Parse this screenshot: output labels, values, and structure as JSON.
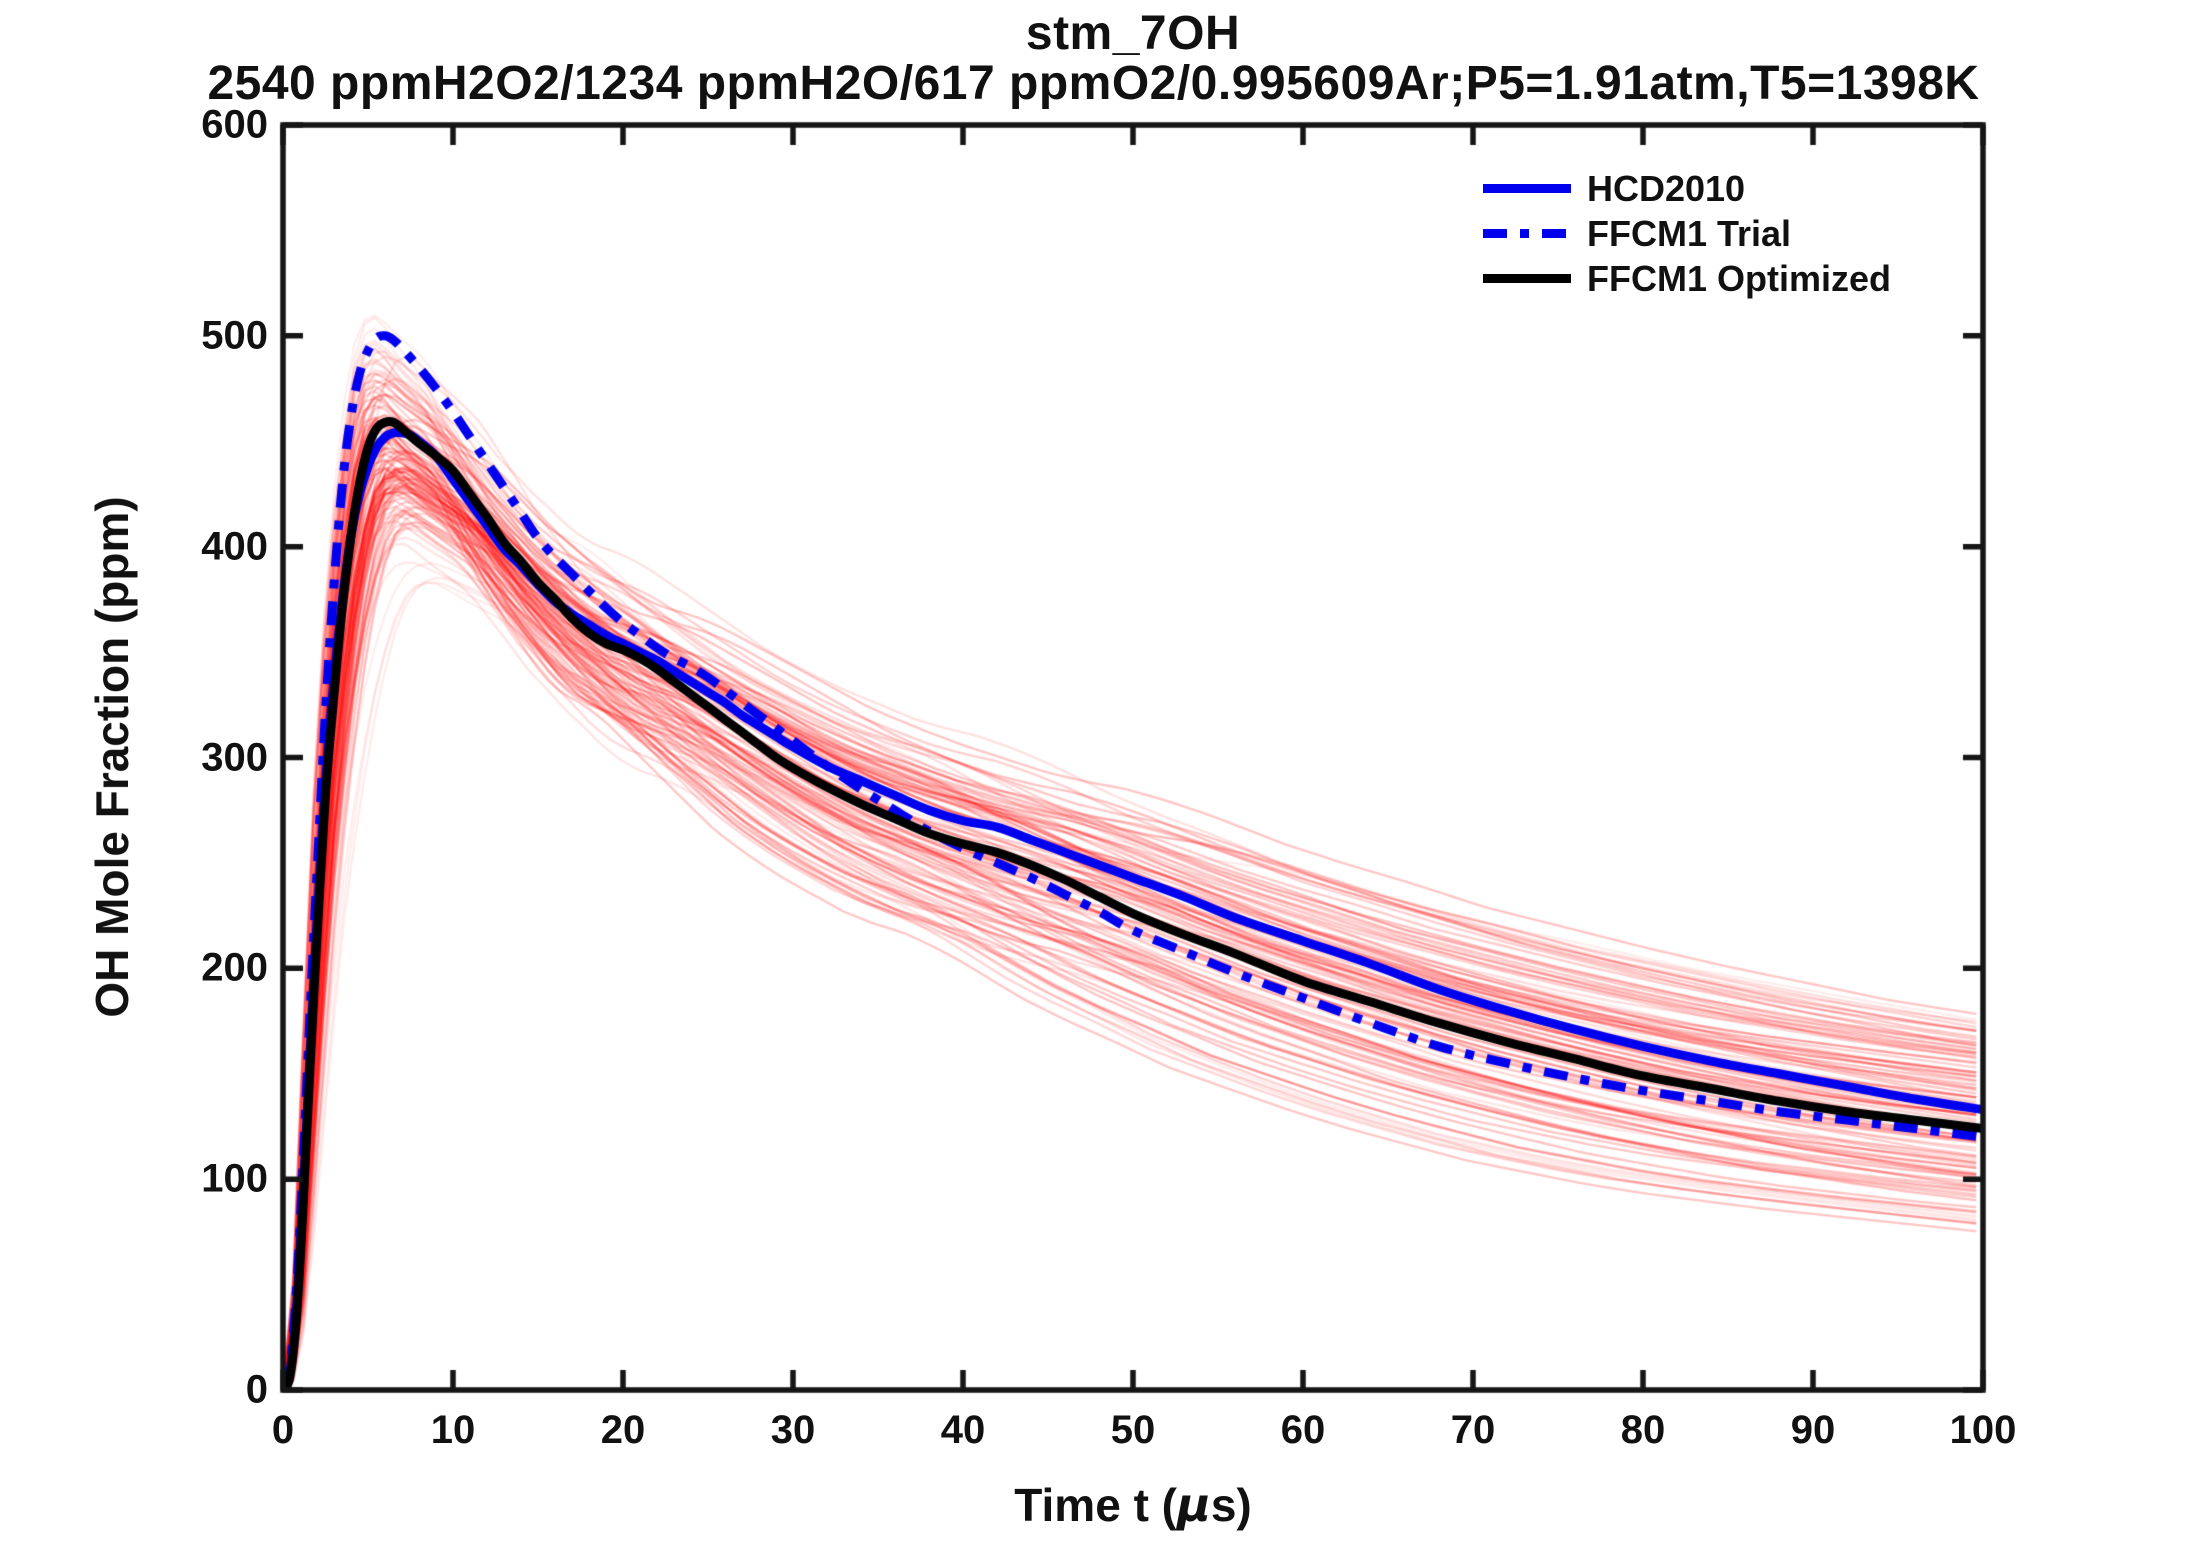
{
  "accent_colors": {
    "blue": "#0000EE",
    "black": "#000000",
    "ensemble_red": "#FF0000",
    "axis": "#151515"
  },
  "chart_data": {
    "type": "line",
    "title": "stm_7OH",
    "subtitle": "2540 ppmH2O2/1234 ppmH2O/617 ppmO2/0.995609Ar;P5=1.91atm,T5=1398K",
    "ylabel": "OH Mole Fraction (ppm)",
    "xlabel_parts": [
      "Time t (",
      "μ",
      "s)"
    ],
    "xlim": [
      0,
      100
    ],
    "ylim": [
      0,
      600
    ],
    "x_ticks": [
      "0",
      "10",
      "20",
      "30",
      "40",
      "50",
      "60",
      "70",
      "80",
      "90",
      "100"
    ],
    "x_tick_values": [
      0,
      10,
      20,
      30,
      40,
      50,
      60,
      70,
      80,
      90,
      100
    ],
    "y_ticks": [
      "0",
      "100",
      "200",
      "300",
      "400",
      "500",
      "600"
    ],
    "y_tick_values": [
      0,
      100,
      200,
      300,
      400,
      500,
      600
    ],
    "grid": false,
    "legend_position": "northeast-inside-no-box",
    "series": [
      {
        "name": "HCD2010",
        "color": "#0000EE",
        "style": "solid",
        "width": 9,
        "points": [
          [
            0,
            0
          ],
          [
            0.4,
            8
          ],
          [
            0.8,
            40
          ],
          [
            1.2,
            95
          ],
          [
            1.6,
            160
          ],
          [
            2,
            222
          ],
          [
            2.5,
            288
          ],
          [
            3,
            337
          ],
          [
            3.5,
            375
          ],
          [
            4,
            405
          ],
          [
            4.5,
            425
          ],
          [
            5,
            438
          ],
          [
            5.5,
            447
          ],
          [
            6,
            452
          ],
          [
            6.5,
            454
          ],
          [
            7,
            454
          ],
          [
            7.5,
            453
          ],
          [
            8,
            450
          ],
          [
            9,
            443
          ],
          [
            10,
            432
          ],
          [
            11,
            421
          ],
          [
            12,
            410
          ],
          [
            13,
            399
          ],
          [
            14,
            391
          ],
          [
            15,
            382
          ],
          [
            16,
            374
          ],
          [
            17,
            368
          ],
          [
            18,
            363
          ],
          [
            19,
            358
          ],
          [
            20,
            354
          ],
          [
            21,
            350
          ],
          [
            22,
            346
          ],
          [
            23,
            341
          ],
          [
            24,
            336
          ],
          [
            25,
            331
          ],
          [
            26,
            326
          ],
          [
            27,
            320
          ],
          [
            28,
            315
          ],
          [
            29,
            310
          ],
          [
            30,
            305
          ],
          [
            32,
            296
          ],
          [
            34,
            289
          ],
          [
            36,
            282
          ],
          [
            38,
            275
          ],
          [
            40,
            270
          ],
          [
            42,
            267
          ],
          [
            44,
            261
          ],
          [
            46,
            255
          ],
          [
            48,
            249
          ],
          [
            50,
            243
          ],
          [
            53,
            234
          ],
          [
            56,
            224
          ],
          [
            60,
            213
          ],
          [
            64,
            202
          ],
          [
            68,
            190
          ],
          [
            72,
            180
          ],
          [
            76,
            171
          ],
          [
            80,
            163
          ],
          [
            84,
            156
          ],
          [
            88,
            150
          ],
          [
            92,
            144
          ],
          [
            96,
            138
          ],
          [
            100,
            133
          ]
        ]
      },
      {
        "name": "FFCM1 Trial",
        "color": "#0000EE",
        "style": "dashdot",
        "width": 9,
        "points": [
          [
            0,
            0
          ],
          [
            0.4,
            10
          ],
          [
            0.8,
            48
          ],
          [
            1.2,
            110
          ],
          [
            1.6,
            180
          ],
          [
            2,
            245
          ],
          [
            2.5,
            322
          ],
          [
            3,
            382
          ],
          [
            3.5,
            430
          ],
          [
            4,
            462
          ],
          [
            4.5,
            482
          ],
          [
            5,
            493
          ],
          [
            5.5,
            499
          ],
          [
            6,
            500
          ],
          [
            6.5,
            498
          ],
          [
            7,
            494
          ],
          [
            8,
            485
          ],
          [
            9,
            475
          ],
          [
            10,
            464
          ],
          [
            11,
            452
          ],
          [
            12,
            440
          ],
          [
            13,
            428
          ],
          [
            14,
            416
          ],
          [
            15,
            404
          ],
          [
            16,
            395
          ],
          [
            17,
            387
          ],
          [
            18,
            379
          ],
          [
            19,
            371
          ],
          [
            20,
            364
          ],
          [
            21,
            358
          ],
          [
            22,
            352
          ],
          [
            23,
            347
          ],
          [
            24,
            343
          ],
          [
            25,
            338
          ],
          [
            26,
            332
          ],
          [
            27,
            326
          ],
          [
            28,
            320
          ],
          [
            29,
            314
          ],
          [
            30,
            308
          ],
          [
            32,
            296
          ],
          [
            34,
            285
          ],
          [
            36,
            275
          ],
          [
            38,
            265
          ],
          [
            40,
            257
          ],
          [
            42,
            250
          ],
          [
            44,
            243
          ],
          [
            46,
            235
          ],
          [
            48,
            227
          ],
          [
            50,
            218
          ],
          [
            53,
            208
          ],
          [
            56,
            198
          ],
          [
            60,
            186
          ],
          [
            64,
            174
          ],
          [
            68,
            163
          ],
          [
            72,
            155
          ],
          [
            76,
            148
          ],
          [
            80,
            142
          ],
          [
            84,
            137
          ],
          [
            88,
            132
          ],
          [
            92,
            128
          ],
          [
            96,
            124
          ],
          [
            100,
            120
          ]
        ]
      },
      {
        "name": "FFCM1 Optimized",
        "color": "#000000",
        "style": "solid",
        "width": 9,
        "points": [
          [
            0,
            0
          ],
          [
            0.4,
            6
          ],
          [
            0.8,
            35
          ],
          [
            1.2,
            90
          ],
          [
            1.6,
            155
          ],
          [
            2,
            215
          ],
          [
            2.5,
            282
          ],
          [
            3,
            330
          ],
          [
            3.5,
            372
          ],
          [
            4,
            405
          ],
          [
            4.5,
            430
          ],
          [
            5,
            447
          ],
          [
            5.5,
            456
          ],
          [
            6,
            459
          ],
          [
            6.5,
            459
          ],
          [
            7,
            456
          ],
          [
            8,
            449
          ],
          [
            9,
            443
          ],
          [
            10,
            436
          ],
          [
            11,
            425
          ],
          [
            12,
            414
          ],
          [
            13,
            402
          ],
          [
            14,
            393
          ],
          [
            15,
            383
          ],
          [
            16,
            375
          ],
          [
            17,
            366
          ],
          [
            18,
            359
          ],
          [
            19,
            354
          ],
          [
            20,
            351
          ],
          [
            21,
            347
          ],
          [
            22,
            342
          ],
          [
            23,
            336
          ],
          [
            24,
            330
          ],
          [
            25,
            324
          ],
          [
            26,
            318
          ],
          [
            27,
            312
          ],
          [
            28,
            306
          ],
          [
            29,
            300
          ],
          [
            30,
            295
          ],
          [
            32,
            286
          ],
          [
            34,
            278
          ],
          [
            36,
            271
          ],
          [
            38,
            264
          ],
          [
            40,
            259
          ],
          [
            42,
            255
          ],
          [
            44,
            249
          ],
          [
            46,
            242
          ],
          [
            48,
            234
          ],
          [
            50,
            226
          ],
          [
            53,
            216
          ],
          [
            56,
            207
          ],
          [
            60,
            194
          ],
          [
            64,
            184
          ],
          [
            68,
            174
          ],
          [
            72,
            165
          ],
          [
            76,
            157
          ],
          [
            80,
            149
          ],
          [
            84,
            143
          ],
          [
            88,
            137
          ],
          [
            92,
            132
          ],
          [
            96,
            128
          ],
          [
            100,
            124
          ]
        ]
      }
    ],
    "ensemble": {
      "description": "Monte-Carlo sample trajectories (light red) fanning around the optimized curve",
      "count": 115,
      "seed": 7,
      "color": "#FF0000",
      "line_width": 2.4,
      "peak_range_ppm": [
        383,
        520
      ],
      "peak_time_range_us": [
        5,
        9
      ],
      "value_at_100us_range_ppm": [
        109,
        165
      ]
    }
  }
}
